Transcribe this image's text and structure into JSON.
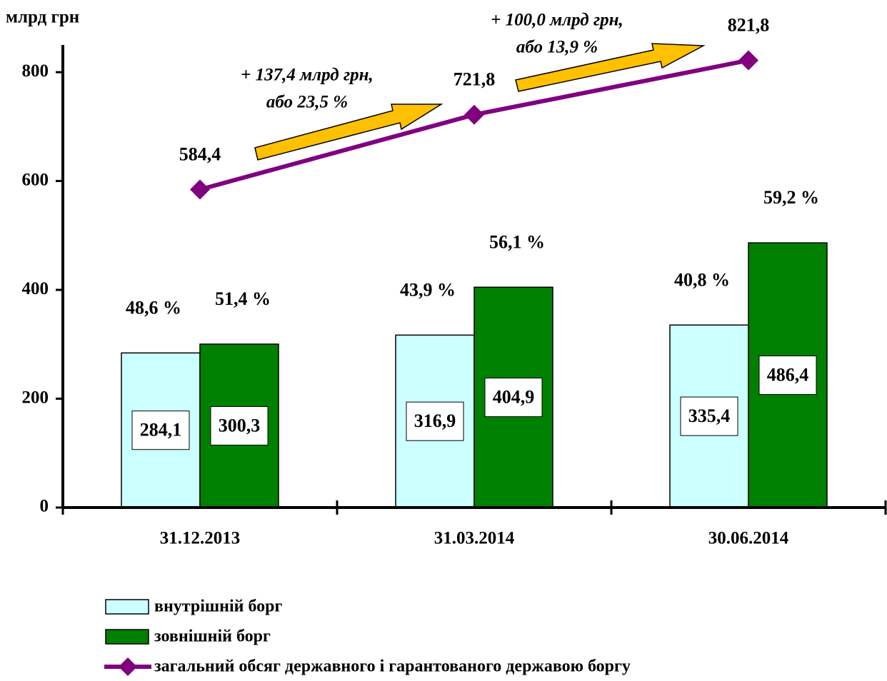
{
  "chart_data": {
    "type": "bar_line",
    "y_label": "млрд грн",
    "categories": [
      "31.12.2013",
      "31.03.2014",
      "30.06.2014"
    ],
    "ylim": [
      0,
      850
    ],
    "yticks": [
      0,
      200,
      400,
      600,
      800
    ],
    "series": [
      {
        "name": "внутрішній борг",
        "type": "bar",
        "color": "#ccffff",
        "values": [
          284.1,
          316.9,
          335.4
        ],
        "value_labels": [
          "284,1",
          "316,9",
          "335,4"
        ],
        "share_labels": [
          "48,6 %",
          "43,9 %",
          "40,8 %"
        ]
      },
      {
        "name": "зовнішній борг",
        "type": "bar",
        "color": "#008000",
        "values": [
          300.3,
          404.9,
          486.4
        ],
        "value_labels": [
          "300,3",
          "404,9",
          "486,4"
        ],
        "share_labels": [
          "51,4 %",
          "56,1 %",
          "59,2 %"
        ]
      },
      {
        "name": "загальний обсяг державного і гарантованого державою боргу",
        "type": "line",
        "color": "#800080",
        "values": [
          584.4,
          721.8,
          821.8
        ],
        "value_labels": [
          "584,4",
          "721,8",
          "821,8"
        ]
      }
    ],
    "annotations": [
      {
        "lines": [
          "+ 137,4 млрд грн,",
          "або 23,5 %"
        ]
      },
      {
        "lines": [
          "+ 100,0 млрд грн,",
          "або 13,9 %"
        ]
      }
    ]
  }
}
